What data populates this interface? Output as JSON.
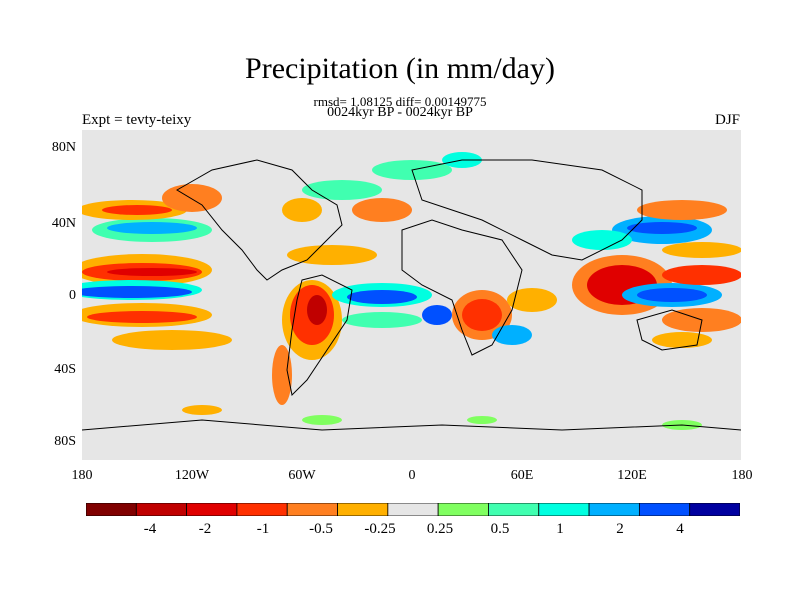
{
  "title": "Precipitation (in mm/day)",
  "stats_line": "rmsd= 1.08125 diff= 0.00149775",
  "period_line": "0024kyr BP - 0024kyr BP",
  "experiment_label": "Expt = tevty-teixy",
  "season_label": "DJF",
  "lat_ticks": [
    "80N",
    "40N",
    "0",
    "40S",
    "80S"
  ],
  "lon_ticks": [
    "180",
    "120W",
    "60W",
    "0",
    "60E",
    "120E",
    "180"
  ],
  "colorbar": {
    "colors": [
      "#800000",
      "#c00000",
      "#e00000",
      "#ff3000",
      "#ff7f20",
      "#ffb000",
      "#e6e6e6",
      "#80ff60",
      "#40ffb0",
      "#00ffe0",
      "#00b0ff",
      "#0050ff",
      "#0000a0"
    ],
    "labels": [
      "-4",
      "-2",
      "-1",
      "-0.5",
      "-0.25",
      "0.25",
      "0.5",
      "1",
      "2",
      "4"
    ]
  }
}
